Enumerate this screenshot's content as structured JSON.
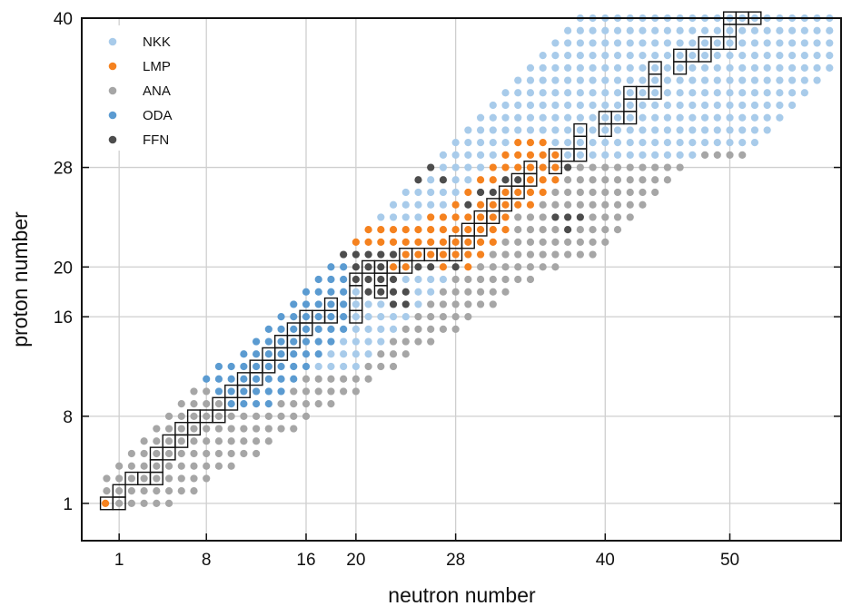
{
  "chart_data": {
    "type": "scatter",
    "title": "",
    "xlabel": "neutron number",
    "ylabel": "proton number",
    "xlim": [
      -2,
      59
    ],
    "ylim": [
      -2,
      40
    ],
    "xticks": [
      1,
      8,
      16,
      20,
      28,
      40,
      50
    ],
    "yticks": [
      1,
      8,
      16,
      20,
      28,
      40
    ],
    "grid": true,
    "legend_position": "top-left",
    "series": [
      {
        "name": "NKK",
        "color": "#a8cbea"
      },
      {
        "name": "LMP",
        "color": "#f5821f"
      },
      {
        "name": "ANA",
        "color": "#a6a6a6"
      },
      {
        "name": "ODA",
        "color": "#5b9bd1"
      },
      {
        "name": "FFN",
        "color": "#4d4d4d"
      }
    ],
    "stable_nuclei_boxes": [
      [
        0,
        1
      ],
      [
        1,
        1
      ],
      [
        1,
        2
      ],
      [
        2,
        3
      ],
      [
        3,
        3
      ],
      [
        4,
        3
      ],
      [
        4,
        4
      ],
      [
        4,
        5
      ],
      [
        5,
        5
      ],
      [
        5,
        6
      ],
      [
        6,
        6
      ],
      [
        6,
        7
      ],
      [
        7,
        7
      ],
      [
        7,
        8
      ],
      [
        8,
        8
      ],
      [
        9,
        8
      ],
      [
        9,
        9
      ],
      [
        10,
        9
      ],
      [
        10,
        10
      ],
      [
        11,
        10
      ],
      [
        11,
        11
      ],
      [
        12,
        11
      ],
      [
        12,
        12
      ],
      [
        13,
        12
      ],
      [
        13,
        13
      ],
      [
        14,
        13
      ],
      [
        14,
        14
      ],
      [
        15,
        14
      ],
      [
        15,
        15
      ],
      [
        16,
        15
      ],
      [
        16,
        16
      ],
      [
        17,
        16
      ],
      [
        18,
        16
      ],
      [
        18,
        17
      ],
      [
        20,
        16
      ],
      [
        20,
        17
      ],
      [
        20,
        18
      ],
      [
        20,
        19
      ],
      [
        21,
        20
      ],
      [
        22,
        20
      ],
      [
        23,
        20
      ],
      [
        22,
        19
      ],
      [
        22,
        18
      ],
      [
        24,
        20
      ],
      [
        24,
        21
      ],
      [
        25,
        21
      ],
      [
        26,
        21
      ],
      [
        27,
        21
      ],
      [
        28,
        21
      ],
      [
        28,
        22
      ],
      [
        29,
        22
      ],
      [
        29,
        23
      ],
      [
        30,
        23
      ],
      [
        30,
        24
      ],
      [
        31,
        24
      ],
      [
        31,
        25
      ],
      [
        32,
        25
      ],
      [
        32,
        26
      ],
      [
        33,
        26
      ],
      [
        33,
        27
      ],
      [
        34,
        27
      ],
      [
        34,
        28
      ],
      [
        36,
        28
      ],
      [
        36,
        29
      ],
      [
        37,
        29
      ],
      [
        38,
        29
      ],
      [
        38,
        30
      ],
      [
        38,
        31
      ],
      [
        40,
        31
      ],
      [
        40,
        32
      ],
      [
        41,
        32
      ],
      [
        42,
        32
      ],
      [
        42,
        33
      ],
      [
        42,
        34
      ],
      [
        43,
        34
      ],
      [
        44,
        34
      ],
      [
        44,
        35
      ],
      [
        44,
        36
      ],
      [
        46,
        36
      ],
      [
        46,
        37
      ],
      [
        47,
        37
      ],
      [
        48,
        37
      ],
      [
        48,
        38
      ],
      [
        49,
        38
      ],
      [
        50,
        38
      ],
      [
        50,
        39
      ],
      [
        50,
        40
      ],
      [
        51,
        40
      ],
      [
        52,
        40
      ]
    ]
  }
}
